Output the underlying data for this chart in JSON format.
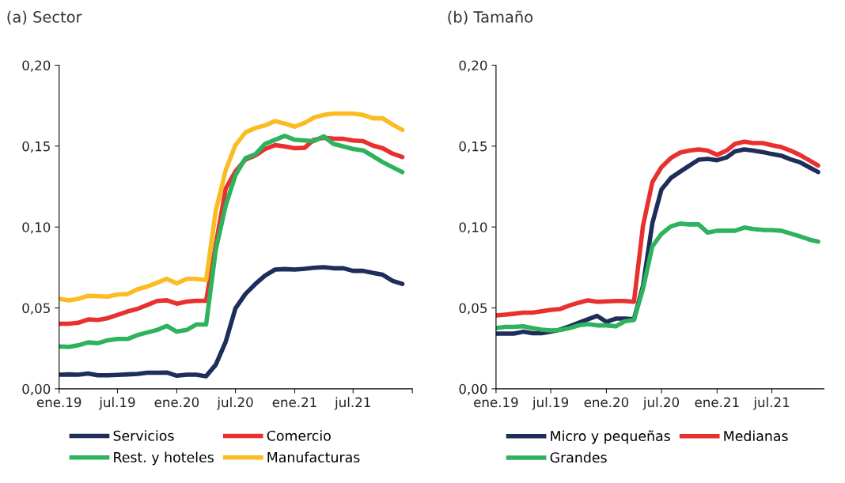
{
  "chart_data": [
    {
      "type": "line",
      "title": "(a) Sector",
      "x": [
        "2019-01",
        "2019-02",
        "2019-03",
        "2019-04",
        "2019-05",
        "2019-06",
        "2019-07",
        "2019-08",
        "2019-09",
        "2019-10",
        "2019-11",
        "2019-12",
        "2020-01",
        "2020-02",
        "2020-03",
        "2020-04",
        "2020-05",
        "2020-06",
        "2020-07",
        "2020-08",
        "2020-09",
        "2020-10",
        "2020-11",
        "2020-12",
        "2021-01",
        "2021-02",
        "2021-03",
        "2021-04",
        "2021-05",
        "2021-06",
        "2021-07",
        "2021-08",
        "2021-09",
        "2021-10",
        "2021-11",
        "2021-12"
      ],
      "series": [
        {
          "name": "Servicios",
          "color": "#1f2d5a",
          "values": [
            0.0087,
            0.0089,
            0.0087,
            0.0094,
            0.0084,
            0.0084,
            0.0086,
            0.0089,
            0.0092,
            0.0099,
            0.0099,
            0.0101,
            0.0081,
            0.0087,
            0.0087,
            0.0078,
            0.0149,
            0.0292,
            0.0497,
            0.0586,
            0.0648,
            0.07,
            0.0737,
            0.074,
            0.0737,
            0.0742,
            0.0748,
            0.0752,
            0.0745,
            0.0745,
            0.0729,
            0.0729,
            0.0716,
            0.0705,
            0.0667,
            0.0648
          ]
        },
        {
          "name": "Comercio",
          "color": "#e8312f",
          "values": [
            0.0402,
            0.0402,
            0.0408,
            0.0429,
            0.0426,
            0.0437,
            0.0457,
            0.0478,
            0.0494,
            0.0518,
            0.0543,
            0.0547,
            0.0526,
            0.0539,
            0.0544,
            0.0544,
            0.0891,
            0.1239,
            0.1344,
            0.1417,
            0.1442,
            0.1482,
            0.1506,
            0.1498,
            0.1487,
            0.149,
            0.1539,
            0.1552,
            0.1547,
            0.1545,
            0.1535,
            0.1531,
            0.1503,
            0.1487,
            0.1453,
            0.1433
          ]
        },
        {
          "name": "Rest. y hoteles",
          "color": "#2db35d",
          "values": [
            0.0262,
            0.0259,
            0.0269,
            0.0287,
            0.0282,
            0.03,
            0.0308,
            0.0308,
            0.0332,
            0.0348,
            0.0364,
            0.0389,
            0.0353,
            0.0364,
            0.0397,
            0.0397,
            0.0858,
            0.1134,
            0.132,
            0.1425,
            0.145,
            0.1514,
            0.1539,
            0.1563,
            0.1539,
            0.1535,
            0.1531,
            0.156,
            0.1514,
            0.1498,
            0.1482,
            0.1474,
            0.1438,
            0.1401,
            0.1369,
            0.1339
          ]
        },
        {
          "name": "Manufacturas",
          "color": "#fbbc23",
          "values": [
            0.0556,
            0.0547,
            0.0556,
            0.0575,
            0.0572,
            0.057,
            0.0583,
            0.0586,
            0.0615,
            0.0632,
            0.0656,
            0.068,
            0.0651,
            0.068,
            0.068,
            0.0672,
            0.1101,
            0.1352,
            0.1506,
            0.1584,
            0.1612,
            0.1628,
            0.1655,
            0.1639,
            0.162,
            0.1644,
            0.1676,
            0.1693,
            0.1701,
            0.1701,
            0.1701,
            0.1693,
            0.1672,
            0.1672,
            0.1633,
            0.16
          ]
        }
      ],
      "xlim": [
        "2019-01",
        "2022-01"
      ],
      "xticks": [
        {
          "value": "2019-01",
          "label": "ene.19"
        },
        {
          "value": "2019-07",
          "label": "jul.19"
        },
        {
          "value": "2020-01",
          "label": "ene.20"
        },
        {
          "value": "2020-07",
          "label": "jul.20"
        },
        {
          "value": "2021-01",
          "label": "ene.21"
        },
        {
          "value": "2021-07",
          "label": "jul.21"
        },
        {
          "value": "2022-01",
          "label": null
        }
      ],
      "ylim": [
        0,
        0.2
      ],
      "yticks": [
        {
          "value": 0,
          "label": "0,00"
        },
        {
          "value": 0.05,
          "label": "0,05"
        },
        {
          "value": 0.1,
          "label": "0,10"
        },
        {
          "value": 0.15,
          "label": "0,15"
        },
        {
          "value": 0.2,
          "label": "0,20"
        }
      ],
      "grid": false,
      "legend": "bottom",
      "marker": "none",
      "line_style": "solid"
    },
    {
      "type": "line",
      "title": "(b) Tamaño",
      "x": [
        "2019-01",
        "2019-02",
        "2019-03",
        "2019-04",
        "2019-05",
        "2019-06",
        "2019-07",
        "2019-08",
        "2019-09",
        "2019-10",
        "2019-11",
        "2019-12",
        "2020-01",
        "2020-02",
        "2020-03",
        "2020-04",
        "2020-05",
        "2020-06",
        "2020-07",
        "2020-08",
        "2020-09",
        "2020-10",
        "2020-11",
        "2020-12",
        "2021-01",
        "2021-02",
        "2021-03",
        "2021-04",
        "2021-05",
        "2021-06",
        "2021-07",
        "2021-08",
        "2021-09",
        "2021-10",
        "2021-11",
        "2021-12"
      ],
      "series": [
        {
          "name": "Micro y pequeñas",
          "color": "#1f2d5a",
          "values": [
            0.0341,
            0.0341,
            0.0341,
            0.0353,
            0.0344,
            0.0344,
            0.0353,
            0.0366,
            0.0386,
            0.0408,
            0.043,
            0.0451,
            0.0414,
            0.0434,
            0.0434,
            0.043,
            0.0636,
            0.1024,
            0.1232,
            0.1303,
            0.1342,
            0.1379,
            0.1416,
            0.1421,
            0.1413,
            0.143,
            0.1467,
            0.148,
            0.1472,
            0.1463,
            0.1451,
            0.1441,
            0.1418,
            0.1401,
            0.137,
            0.134
          ]
        },
        {
          "name": "Medianas",
          "color": "#e8312f",
          "values": [
            0.0454,
            0.0459,
            0.0464,
            0.0471,
            0.0471,
            0.0479,
            0.0488,
            0.0493,
            0.0515,
            0.0532,
            0.0547,
            0.0538,
            0.054,
            0.0543,
            0.0543,
            0.0538,
            0.1008,
            0.1278,
            0.137,
            0.1426,
            0.146,
            0.1472,
            0.148,
            0.1472,
            0.1446,
            0.1472,
            0.1514,
            0.1527,
            0.1519,
            0.1519,
            0.1505,
            0.1494,
            0.1472,
            0.1446,
            0.1413,
            0.138
          ]
        },
        {
          "name": "Grandes",
          "color": "#2db35d",
          "values": [
            0.0375,
            0.0383,
            0.0383,
            0.0386,
            0.0375,
            0.0366,
            0.0361,
            0.0363,
            0.0375,
            0.0392,
            0.04,
            0.0392,
            0.0392,
            0.0386,
            0.0417,
            0.0425,
            0.0619,
            0.0881,
            0.0957,
            0.1004,
            0.1021,
            0.1016,
            0.1016,
            0.0965,
            0.0977,
            0.0977,
            0.0977,
            0.0997,
            0.0987,
            0.0982,
            0.0981,
            0.0977,
            0.096,
            0.0943,
            0.0923,
            0.091
          ]
        }
      ],
      "xlim": [
        "2019-01",
        "2021-12-20"
      ],
      "xticks": [
        {
          "value": "2019-01",
          "label": "ene.19"
        },
        {
          "value": "2019-07",
          "label": "jul.19"
        },
        {
          "value": "2020-01",
          "label": "ene.20"
        },
        {
          "value": "2020-07",
          "label": "jul.20"
        },
        {
          "value": "2021-01",
          "label": "ene.21"
        },
        {
          "value": "2021-07",
          "label": "jul.21"
        }
      ],
      "ylim": [
        0,
        0.2
      ],
      "yticks": [
        {
          "value": 0,
          "label": "0,00"
        },
        {
          "value": 0.05,
          "label": "0,05"
        },
        {
          "value": 0.1,
          "label": "0,10"
        },
        {
          "value": 0.15,
          "label": "0,15"
        },
        {
          "value": 0.2,
          "label": "0,20"
        }
      ],
      "grid": false,
      "legend": "bottom",
      "marker": "none",
      "line_style": "solid"
    }
  ]
}
